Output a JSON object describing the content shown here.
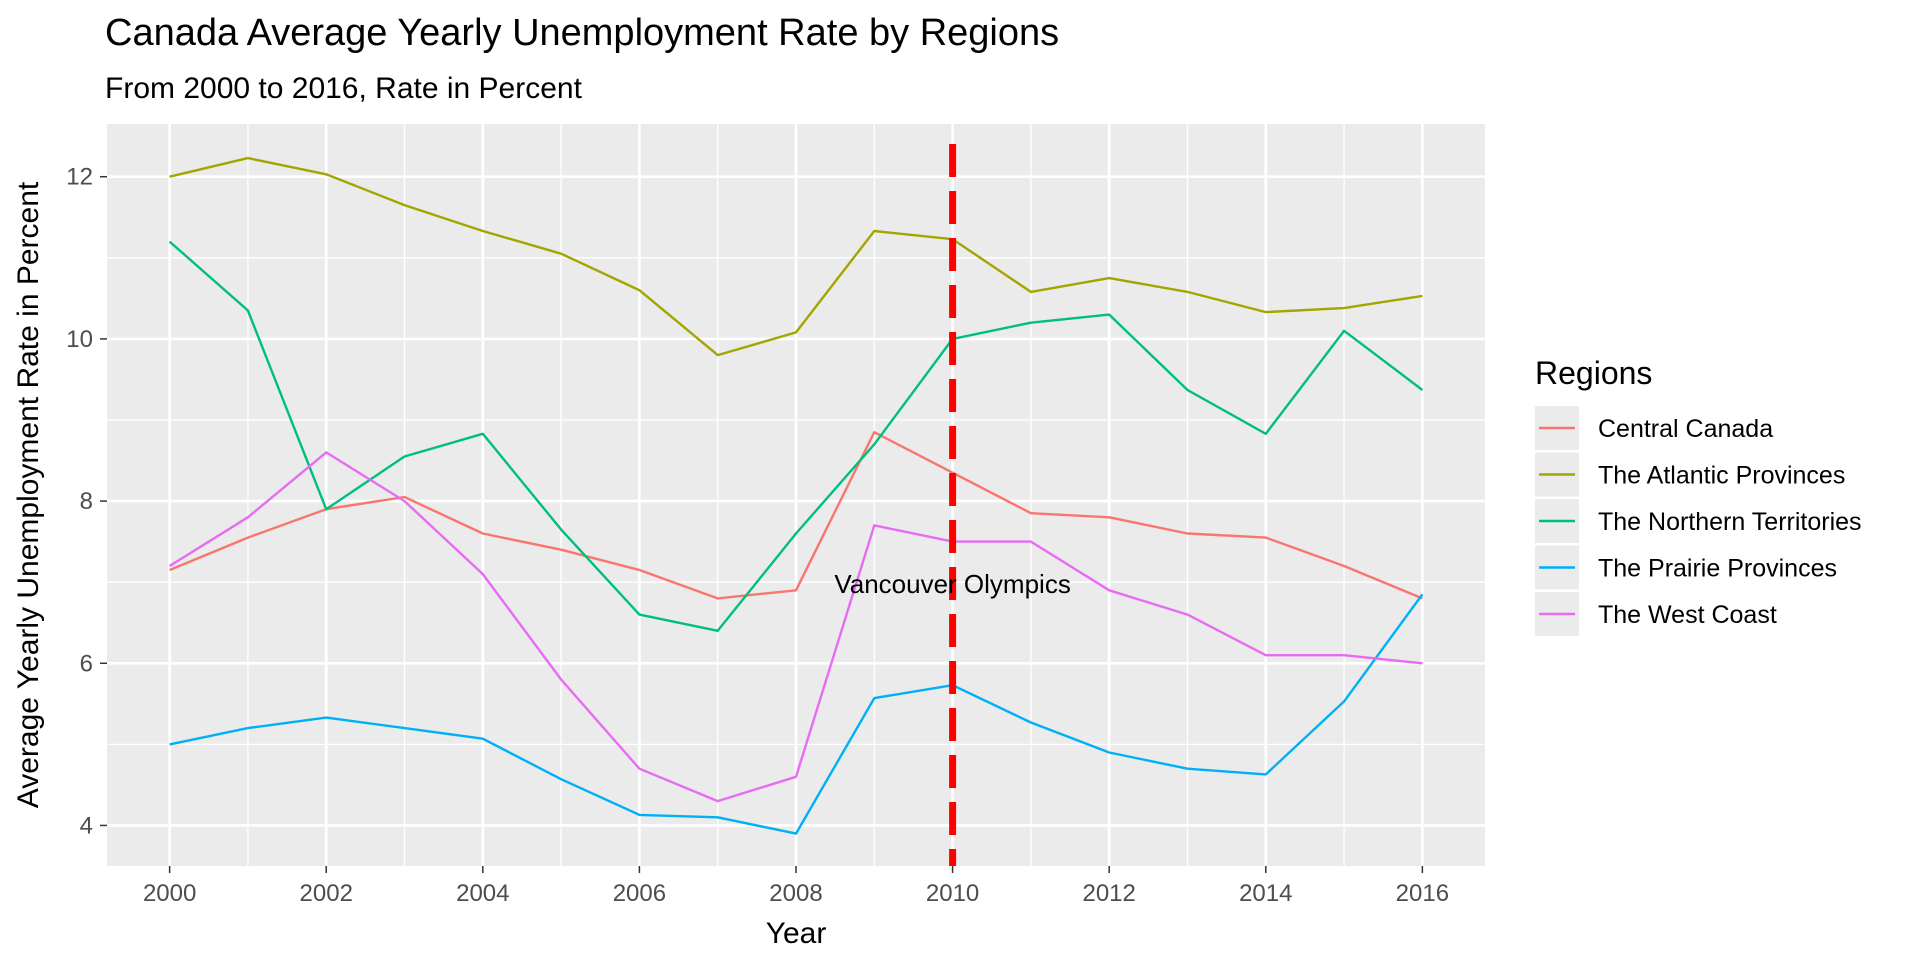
{
  "chart_data": {
    "type": "line",
    "title": "Canada Average Yearly Unemployment Rate by Regions",
    "subtitle": "From 2000 to 2016, Rate in Percent",
    "xlabel": "Year",
    "ylabel": "Average Yearly Unemployment Rate in Percent",
    "x": [
      2000,
      2001,
      2002,
      2003,
      2004,
      2005,
      2006,
      2007,
      2008,
      2009,
      2010,
      2011,
      2012,
      2013,
      2014,
      2015,
      2016
    ],
    "xlim": [
      1999.2,
      2016.8
    ],
    "ylim": [
      3.5,
      12.65
    ],
    "x_ticks": [
      2000,
      2002,
      2004,
      2006,
      2008,
      2010,
      2012,
      2014,
      2016
    ],
    "y_ticks": [
      4,
      6,
      8,
      10,
      12
    ],
    "grid": true,
    "legend_title": "Regions",
    "legend_position": "right",
    "series": [
      {
        "name": "Central Canada",
        "color": "#F8766D",
        "values": [
          7.15,
          7.55,
          7.9,
          8.05,
          7.6,
          7.4,
          7.15,
          6.8,
          6.9,
          8.85,
          8.35,
          7.85,
          7.8,
          7.6,
          7.55,
          7.2,
          6.8
        ]
      },
      {
        "name": "The Atlantic Provinces",
        "color": "#A3A500",
        "values": [
          12.0,
          12.23,
          12.03,
          11.65,
          11.33,
          11.05,
          10.6,
          9.8,
          10.08,
          11.33,
          11.23,
          10.58,
          10.75,
          10.58,
          10.33,
          10.38,
          10.53
        ]
      },
      {
        "name": "The Northern Territories",
        "color": "#00BF7D",
        "values": [
          11.2,
          10.35,
          7.9,
          8.55,
          8.83,
          7.65,
          6.6,
          6.4,
          7.6,
          8.7,
          10.0,
          10.2,
          10.3,
          9.37,
          8.83,
          10.1,
          9.37
        ]
      },
      {
        "name": "The Prairie Provinces",
        "color": "#00B0F6",
        "values": [
          5.0,
          5.2,
          5.33,
          5.2,
          5.07,
          4.57,
          4.13,
          4.1,
          3.9,
          5.57,
          5.73,
          5.27,
          4.9,
          4.7,
          4.63,
          5.53,
          6.85
        ]
      },
      {
        "name": "The West Coast",
        "color": "#E76BF3",
        "values": [
          7.2,
          7.8,
          8.6,
          8.0,
          7.1,
          5.8,
          4.7,
          4.3,
          4.6,
          7.7,
          7.5,
          7.5,
          6.9,
          6.6,
          6.1,
          6.1,
          6.0
        ]
      }
    ],
    "reference_line": {
      "x": 2010,
      "color": "#FF0000",
      "style": "dashed"
    },
    "annotation": {
      "text": "Vancouver Olympics",
      "x": 2010,
      "y": 6.95
    }
  }
}
